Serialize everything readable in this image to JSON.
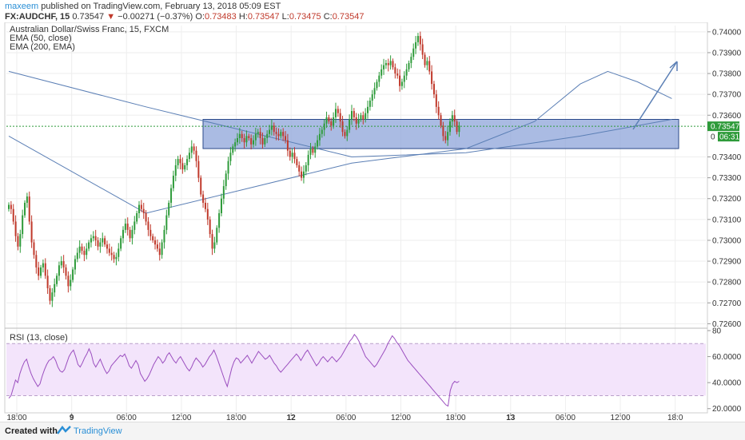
{
  "header": {
    "author": "maxeem",
    "published": "published on TradingView.com, February 13, 2018 05:09 EST",
    "symbol": "FX:AUDCHF, 15",
    "last": "0.73547",
    "change_arrow": "▼",
    "change": "−0.00271 (−0.37%)",
    "o_label": "O:",
    "o_value": "0.73483",
    "h_label": "H:",
    "h_value": "0.73547",
    "l_label": "L:",
    "l_value": "0.73475",
    "c_label": "C:",
    "c_value": "0.73547"
  },
  "legend": {
    "title": "Australian Dollar/Swiss Franc, 15, FXCM",
    "ema50": "EMA (50, close)",
    "ema200": "EMA (200, EMA)"
  },
  "footer": {
    "created": "Created with",
    "brand": "TradingView"
  },
  "colors": {
    "up": "#2e9b3a",
    "down": "#c0392b",
    "ema": "#5b7fb5",
    "rsi": "#9b4fbf",
    "rsi_band": "#f3e4fb",
    "zone_fill": "#8ea4da",
    "zone_border": "#2b4a8a",
    "last_bg": "#2e9b3a",
    "grid": "#eeeeee"
  },
  "chart_data": [
    {
      "type": "candlestick",
      "title": "Australian Dollar/Swiss Franc, 15, FXCM",
      "x_tick_labels": [
        "18:00",
        "9",
        "06:00",
        "12:00",
        "18:00",
        "12",
        "06:00",
        "12:00",
        "18:00",
        "13",
        "06:00",
        "12:00",
        "18:0"
      ],
      "y_tick_labels": [
        "0.74000",
        "0.73900",
        "0.73800",
        "0.73700",
        "0.73600",
        "0.73400",
        "0.73300",
        "0.73200",
        "0.73100",
        "0.73000",
        "0.72900",
        "0.72800",
        "0.72700",
        "0.72600"
      ],
      "ylim": [
        0.7259,
        0.7403
      ],
      "last_price_label": "0.73547",
      "countdown_label": "06:31",
      "bars_per_tick": 24,
      "close": [
        0.7317,
        0.7315,
        0.7309,
        0.7302,
        0.7297,
        0.7303,
        0.7312,
        0.7318,
        0.7321,
        0.7309,
        0.7299,
        0.7293,
        0.7287,
        0.7283,
        0.7287,
        0.7289,
        0.7283,
        0.7277,
        0.7271,
        0.7275,
        0.7279,
        0.7283,
        0.7288,
        0.729,
        0.7287,
        0.7283,
        0.7278,
        0.7281,
        0.7286,
        0.7291,
        0.7294,
        0.7297,
        0.7295,
        0.7293,
        0.7296,
        0.7299,
        0.7301,
        0.7302,
        0.73,
        0.7297,
        0.7299,
        0.7301,
        0.7298,
        0.7296,
        0.7294,
        0.7293,
        0.7291,
        0.7292,
        0.7296,
        0.7301,
        0.7305,
        0.7308,
        0.7305,
        0.7301,
        0.7305,
        0.7309,
        0.7313,
        0.7317,
        0.7315,
        0.7313,
        0.7309,
        0.7305,
        0.7302,
        0.73,
        0.7298,
        0.7296,
        0.7293,
        0.7299,
        0.7305,
        0.7312,
        0.7318,
        0.7325,
        0.7331,
        0.7336,
        0.7339,
        0.7337,
        0.7334,
        0.7336,
        0.7339,
        0.7342,
        0.7345,
        0.7343,
        0.7338,
        0.733,
        0.7322,
        0.7318,
        0.7315,
        0.731,
        0.7303,
        0.7296,
        0.7299,
        0.7306,
        0.7313,
        0.732,
        0.7326,
        0.7332,
        0.7338,
        0.7342,
        0.7345,
        0.7347,
        0.7349,
        0.7351,
        0.7349,
        0.7347,
        0.735,
        0.7349,
        0.7346,
        0.7348,
        0.7351,
        0.7352,
        0.7349,
        0.7346,
        0.7349,
        0.7351,
        0.7353,
        0.7355,
        0.7352,
        0.7351,
        0.735,
        0.7352,
        0.735,
        0.7348,
        0.7343,
        0.734,
        0.7342,
        0.7339,
        0.7336,
        0.7333,
        0.733,
        0.7333,
        0.7336,
        0.7341,
        0.7344,
        0.7342,
        0.7345,
        0.7348,
        0.7351,
        0.7353,
        0.7356,
        0.7359,
        0.7357,
        0.7355,
        0.7359,
        0.7363,
        0.7361,
        0.7357,
        0.7352,
        0.735,
        0.7353,
        0.7358,
        0.7362,
        0.7359,
        0.7356,
        0.7358,
        0.736,
        0.7358,
        0.7361,
        0.7364,
        0.7367,
        0.737,
        0.7373,
        0.7376,
        0.7379,
        0.7382,
        0.7384,
        0.7385,
        0.7384,
        0.7386,
        0.7383,
        0.738,
        0.7379,
        0.7374,
        0.7376,
        0.7379,
        0.7382,
        0.7385,
        0.7388,
        0.7392,
        0.7395,
        0.7398,
        0.7394,
        0.7389,
        0.7384,
        0.7386,
        0.7381,
        0.7375,
        0.737,
        0.7364,
        0.736,
        0.7355,
        0.735,
        0.7348,
        0.7352,
        0.7357,
        0.736,
        0.7357,
        0.7352,
        0.7355
      ],
      "ema50_curve": [
        [
          0,
          0.735
        ],
        [
          60,
          0.7313
        ],
        [
          150,
          0.7337
        ],
        [
          200,
          0.7344
        ],
        [
          230,
          0.7357
        ],
        [
          250,
          0.7375
        ],
        [
          262,
          0.7381
        ],
        [
          275,
          0.7376
        ],
        [
          290,
          0.7368
        ]
      ],
      "ema200_curve": [
        [
          0,
          0.7381
        ],
        [
          60,
          0.7364
        ],
        [
          150,
          0.734
        ],
        [
          200,
          0.7342
        ],
        [
          250,
          0.735
        ],
        [
          290,
          0.7358
        ]
      ],
      "support_zone": [
        0.7344,
        0.7358
      ],
      "arrow": "projected rise to the upper right"
    },
    {
      "type": "line",
      "title": "RSI (13, close)",
      "y_tick_labels": [
        "80",
        "60.0000",
        "40.0000",
        "20.0000"
      ],
      "ylim": [
        18,
        80
      ],
      "bands": [
        70,
        30
      ],
      "series": [
        {
          "values": [
            28,
            30,
            36,
            42,
            40,
            47,
            52,
            56,
            58,
            52,
            47,
            43,
            40,
            37,
            39,
            45,
            50,
            54,
            57,
            58,
            60,
            57,
            52,
            49,
            48,
            50,
            55,
            60,
            63,
            65,
            60,
            54,
            52,
            55,
            59,
            62,
            66,
            62,
            55,
            52,
            55,
            58,
            54,
            50,
            47,
            49,
            53,
            55,
            57,
            59,
            61,
            60,
            62,
            58,
            53,
            51,
            54,
            57,
            54,
            47,
            44,
            41,
            43,
            46,
            50,
            54,
            57,
            60,
            58,
            55,
            57,
            61,
            63,
            60,
            57,
            55,
            58,
            60,
            57,
            54,
            51,
            49,
            52,
            56,
            59,
            57,
            55,
            52,
            54,
            57,
            60,
            62,
            65,
            61,
            56,
            51,
            46,
            41,
            37,
            44,
            51,
            56,
            59,
            58,
            55,
            57,
            59,
            61,
            58,
            55,
            58,
            61,
            64,
            62,
            60,
            58,
            59,
            61,
            58,
            55,
            53,
            50,
            48,
            50,
            52,
            54,
            56,
            58,
            60,
            62,
            60,
            57,
            60,
            63,
            65,
            62,
            59,
            56,
            53,
            55,
            58,
            60,
            58,
            56,
            58,
            60,
            58,
            56,
            58,
            60,
            63,
            66,
            69,
            72,
            74,
            77,
            75,
            72,
            68,
            64,
            60,
            58,
            56,
            54,
            52,
            54,
            57,
            60,
            63,
            66,
            70,
            73,
            76,
            74,
            71,
            69,
            66,
            63,
            60,
            57,
            55,
            53,
            51,
            49,
            47,
            45,
            43,
            41,
            39,
            37,
            35,
            33,
            31,
            29,
            27,
            25,
            23,
            22,
            34,
            39,
            41,
            40,
            41
          ]
        }
      ]
    }
  ]
}
